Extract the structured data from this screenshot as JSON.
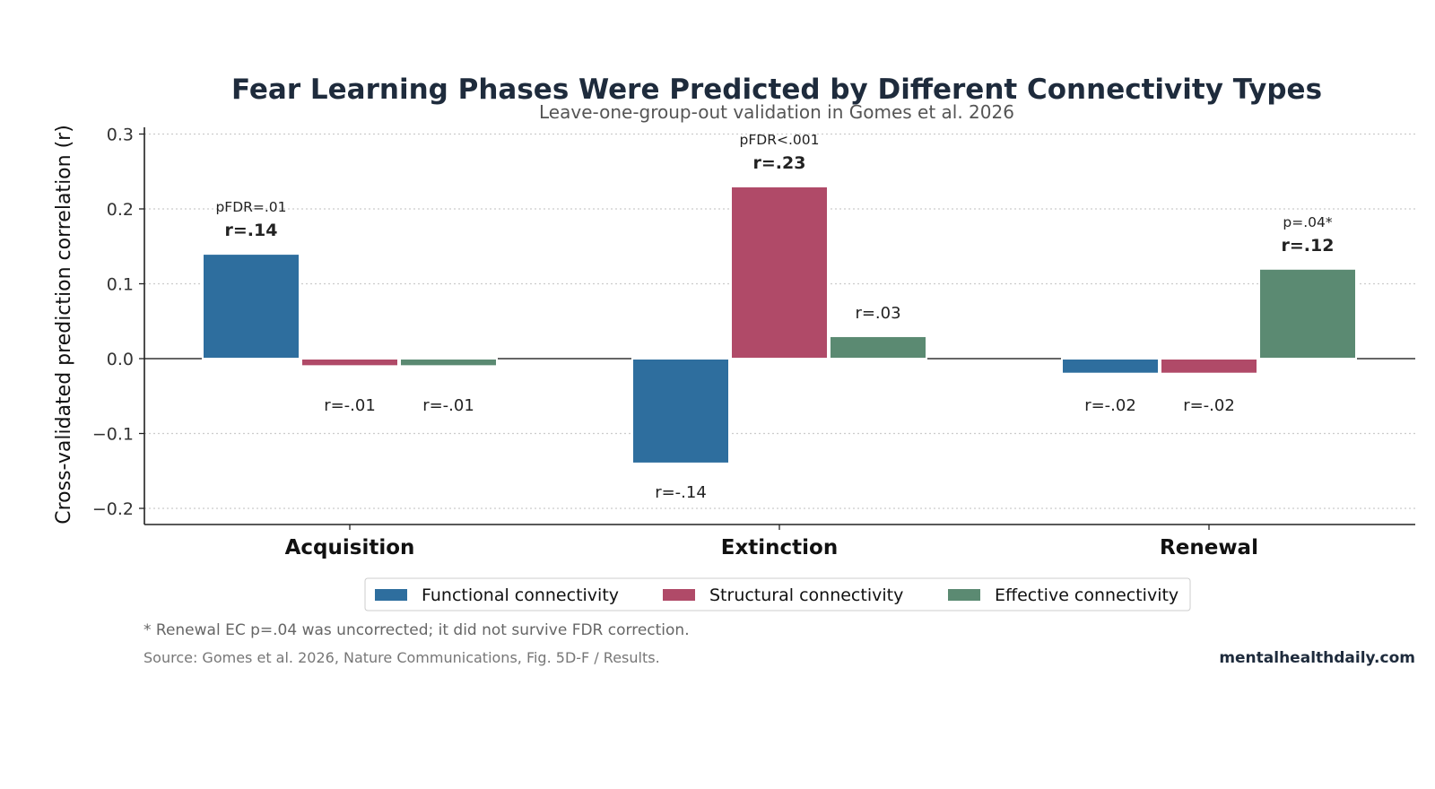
{
  "chart_data": {
    "type": "bar",
    "title": "Fear Learning Phases Were Predicted by Different Connectivity Types",
    "subtitle": "Leave-one-group-out validation in Gomes et al. 2026",
    "xlabel": "",
    "ylabel": "Cross-validated prediction correlation (r)",
    "ylim": [
      -0.22,
      0.31
    ],
    "yticks": [
      -0.2,
      -0.1,
      0.0,
      0.1,
      0.2,
      0.3
    ],
    "ytick_labels": [
      "−0.2",
      "−0.1",
      "0.0",
      "0.1",
      "0.2",
      "0.3"
    ],
    "grid": "horizontal dotted",
    "legend_position": "bottom-center",
    "categories": [
      "Acquisition",
      "Extinction",
      "Renewal"
    ],
    "series": [
      {
        "name": "Functional connectivity",
        "color": "#2e6e9e",
        "values": [
          0.14,
          -0.14,
          -0.02
        ],
        "labels": [
          "r=.14",
          "r=-.14",
          "r=-.02"
        ],
        "bold": [
          true,
          false,
          false
        ],
        "sig": [
          "pFDR=.01",
          "",
          ""
        ]
      },
      {
        "name": "Structural connectivity",
        "color": "#b04a68",
        "values": [
          -0.01,
          0.23,
          -0.02
        ],
        "labels": [
          "r=-.01",
          "r=.23",
          "r=-.02"
        ],
        "bold": [
          false,
          true,
          false
        ],
        "sig": [
          "",
          "pFDR<.001",
          ""
        ]
      },
      {
        "name": "Effective connectivity",
        "color": "#5b8a72",
        "values": [
          -0.01,
          0.03,
          0.12
        ],
        "labels": [
          "r=-.01",
          "r=.03",
          "r=.12"
        ],
        "bold": [
          false,
          false,
          true
        ],
        "sig": [
          "",
          "",
          "p=.04*"
        ]
      }
    ],
    "footnote": "* Renewal EC p=.04 was uncorrected; it did not survive FDR correction.",
    "source": "Source: Gomes et al. 2026, Nature Communications, Fig. 5D-F / Results.",
    "brand": "mentalhealthdaily.com"
  }
}
